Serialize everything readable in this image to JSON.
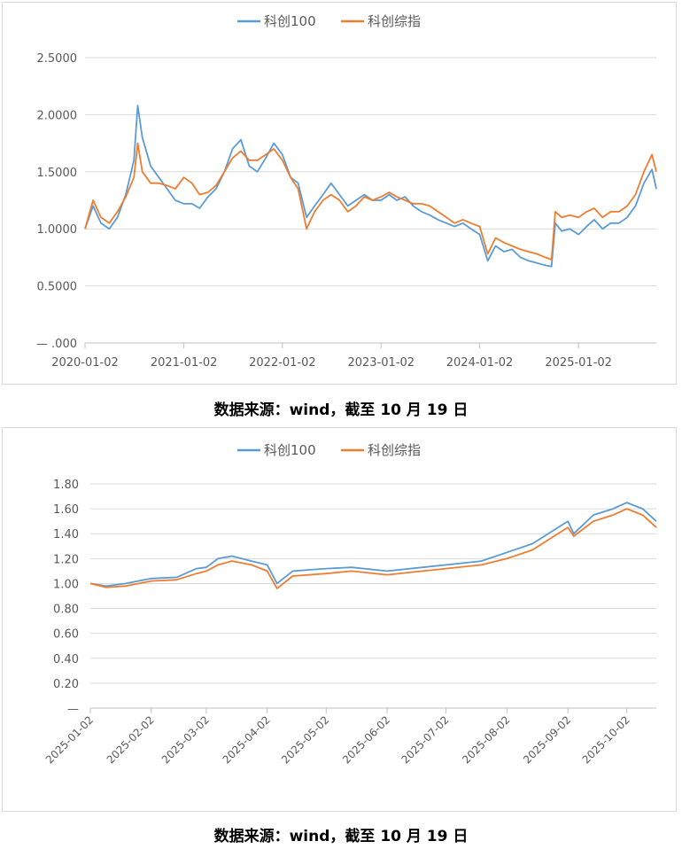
{
  "charts": [
    {
      "caption": "数据来源：wind，截至 10 月 19 日",
      "chart_data": {
        "type": "line",
        "y_ticks": [
          "—  .000",
          "0.5000",
          "1.0000",
          "1.5000",
          "2.0000",
          "2.5000"
        ],
        "ylim": [
          0,
          2.5
        ],
        "x_ticks": [
          "2020-01-02",
          "2021-01-02",
          "2022-01-02",
          "2023-01-02",
          "2024-01-02",
          "2025-01-02"
        ],
        "x_range": [
          "2020-01-02",
          "2025-10-17"
        ],
        "grid": "horizontal",
        "legend_position": "top",
        "series": [
          {
            "name": "科创100",
            "color": "#5b9bd5",
            "points": [
              [
                "2020-01-02",
                1.0
              ],
              [
                "2020-02-01",
                1.2
              ],
              [
                "2020-03-01",
                1.05
              ],
              [
                "2020-04-01",
                1.0
              ],
              [
                "2020-05-01",
                1.1
              ],
              [
                "2020-06-01",
                1.3
              ],
              [
                "2020-07-01",
                1.6
              ],
              [
                "2020-07-15",
                2.08
              ],
              [
                "2020-08-01",
                1.8
              ],
              [
                "2020-09-01",
                1.55
              ],
              [
                "2020-10-01",
                1.45
              ],
              [
                "2020-11-01",
                1.35
              ],
              [
                "2020-12-01",
                1.25
              ],
              [
                "2021-01-02",
                1.22
              ],
              [
                "2021-02-01",
                1.22
              ],
              [
                "2021-03-01",
                1.18
              ],
              [
                "2021-04-01",
                1.28
              ],
              [
                "2021-05-01",
                1.35
              ],
              [
                "2021-06-01",
                1.5
              ],
              [
                "2021-07-01",
                1.7
              ],
              [
                "2021-08-01",
                1.78
              ],
              [
                "2021-09-01",
                1.55
              ],
              [
                "2021-10-01",
                1.5
              ],
              [
                "2021-11-01",
                1.62
              ],
              [
                "2021-12-01",
                1.75
              ],
              [
                "2022-01-02",
                1.65
              ],
              [
                "2022-02-01",
                1.45
              ],
              [
                "2022-03-01",
                1.4
              ],
              [
                "2022-04-01",
                1.1
              ],
              [
                "2022-05-01",
                1.2
              ],
              [
                "2022-06-01",
                1.3
              ],
              [
                "2022-07-01",
                1.4
              ],
              [
                "2022-08-01",
                1.3
              ],
              [
                "2022-09-01",
                1.2
              ],
              [
                "2022-10-01",
                1.25
              ],
              [
                "2022-11-01",
                1.3
              ],
              [
                "2022-12-01",
                1.25
              ],
              [
                "2023-01-02",
                1.25
              ],
              [
                "2023-02-01",
                1.3
              ],
              [
                "2023-03-01",
                1.25
              ],
              [
                "2023-04-01",
                1.28
              ],
              [
                "2023-05-01",
                1.2
              ],
              [
                "2023-06-01",
                1.15
              ],
              [
                "2023-07-01",
                1.12
              ],
              [
                "2023-08-01",
                1.08
              ],
              [
                "2023-09-01",
                1.05
              ],
              [
                "2023-10-01",
                1.02
              ],
              [
                "2023-11-01",
                1.05
              ],
              [
                "2023-12-01",
                1.0
              ],
              [
                "2024-01-02",
                0.95
              ],
              [
                "2024-02-01",
                0.72
              ],
              [
                "2024-03-01",
                0.85
              ],
              [
                "2024-04-01",
                0.8
              ],
              [
                "2024-05-01",
                0.82
              ],
              [
                "2024-06-01",
                0.75
              ],
              [
                "2024-07-01",
                0.72
              ],
              [
                "2024-08-01",
                0.7
              ],
              [
                "2024-09-01",
                0.68
              ],
              [
                "2024-09-24",
                0.67
              ],
              [
                "2024-10-08",
                1.05
              ],
              [
                "2024-11-01",
                0.98
              ],
              [
                "2024-12-01",
                1.0
              ],
              [
                "2025-01-02",
                0.95
              ],
              [
                "2025-02-01",
                1.02
              ],
              [
                "2025-03-01",
                1.08
              ],
              [
                "2025-04-01",
                1.0
              ],
              [
                "2025-05-01",
                1.05
              ],
              [
                "2025-06-01",
                1.05
              ],
              [
                "2025-07-01",
                1.1
              ],
              [
                "2025-08-01",
                1.2
              ],
              [
                "2025-09-01",
                1.4
              ],
              [
                "2025-10-01",
                1.52
              ],
              [
                "2025-10-17",
                1.35
              ]
            ]
          },
          {
            "name": "科创综指",
            "color": "#ed7d31",
            "points": [
              [
                "2020-01-02",
                1.0
              ],
              [
                "2020-02-01",
                1.25
              ],
              [
                "2020-03-01",
                1.1
              ],
              [
                "2020-04-01",
                1.05
              ],
              [
                "2020-05-01",
                1.15
              ],
              [
                "2020-06-01",
                1.28
              ],
              [
                "2020-07-01",
                1.45
              ],
              [
                "2020-07-15",
                1.75
              ],
              [
                "2020-08-01",
                1.5
              ],
              [
                "2020-09-01",
                1.4
              ],
              [
                "2020-10-01",
                1.4
              ],
              [
                "2020-11-01",
                1.38
              ],
              [
                "2020-12-01",
                1.35
              ],
              [
                "2021-01-02",
                1.45
              ],
              [
                "2021-02-01",
                1.4
              ],
              [
                "2021-03-01",
                1.3
              ],
              [
                "2021-04-01",
                1.32
              ],
              [
                "2021-05-01",
                1.38
              ],
              [
                "2021-06-01",
                1.5
              ],
              [
                "2021-07-01",
                1.62
              ],
              [
                "2021-08-01",
                1.68
              ],
              [
                "2021-09-01",
                1.6
              ],
              [
                "2021-10-01",
                1.6
              ],
              [
                "2021-11-01",
                1.65
              ],
              [
                "2021-12-01",
                1.7
              ],
              [
                "2022-01-02",
                1.6
              ],
              [
                "2022-02-01",
                1.45
              ],
              [
                "2022-03-01",
                1.35
              ],
              [
                "2022-04-01",
                1.0
              ],
              [
                "2022-05-01",
                1.15
              ],
              [
                "2022-06-01",
                1.25
              ],
              [
                "2022-07-01",
                1.3
              ],
              [
                "2022-08-01",
                1.25
              ],
              [
                "2022-09-01",
                1.15
              ],
              [
                "2022-10-01",
                1.2
              ],
              [
                "2022-11-01",
                1.28
              ],
              [
                "2022-12-01",
                1.25
              ],
              [
                "2023-01-02",
                1.28
              ],
              [
                "2023-02-01",
                1.32
              ],
              [
                "2023-03-01",
                1.28
              ],
              [
                "2023-04-01",
                1.25
              ],
              [
                "2023-05-01",
                1.22
              ],
              [
                "2023-06-01",
                1.22
              ],
              [
                "2023-07-01",
                1.2
              ],
              [
                "2023-08-01",
                1.15
              ],
              [
                "2023-09-01",
                1.1
              ],
              [
                "2023-10-01",
                1.05
              ],
              [
                "2023-11-01",
                1.08
              ],
              [
                "2023-12-01",
                1.05
              ],
              [
                "2024-01-02",
                1.02
              ],
              [
                "2024-02-01",
                0.78
              ],
              [
                "2024-03-01",
                0.92
              ],
              [
                "2024-04-01",
                0.88
              ],
              [
                "2024-05-01",
                0.85
              ],
              [
                "2024-06-01",
                0.82
              ],
              [
                "2024-07-01",
                0.8
              ],
              [
                "2024-08-01",
                0.78
              ],
              [
                "2024-09-01",
                0.75
              ],
              [
                "2024-09-24",
                0.73
              ],
              [
                "2024-10-08",
                1.15
              ],
              [
                "2024-11-01",
                1.1
              ],
              [
                "2024-12-01",
                1.12
              ],
              [
                "2025-01-02",
                1.1
              ],
              [
                "2025-02-01",
                1.15
              ],
              [
                "2025-03-01",
                1.18
              ],
              [
                "2025-04-01",
                1.1
              ],
              [
                "2025-05-01",
                1.15
              ],
              [
                "2025-06-01",
                1.15
              ],
              [
                "2025-07-01",
                1.2
              ],
              [
                "2025-08-01",
                1.3
              ],
              [
                "2025-09-01",
                1.5
              ],
              [
                "2025-10-01",
                1.65
              ],
              [
                "2025-10-17",
                1.5
              ]
            ]
          }
        ]
      }
    },
    {
      "caption": "数据来源：wind，截至 10 月 19 日",
      "chart_data": {
        "type": "line",
        "y_ticks": [
          "—",
          "0.20",
          "0.40",
          "0.60",
          "0.80",
          "1.00",
          "1.20",
          "1.40",
          "1.60",
          "1.80"
        ],
        "ylim": [
          0,
          1.8
        ],
        "x_ticks": [
          "2025-01-02",
          "2025-02-02",
          "2025-03-02",
          "2025-04-02",
          "2025-05-02",
          "2025-06-02",
          "2025-07-02",
          "2025-08-02",
          "2025-09-02",
          "2025-10-02"
        ],
        "x_range": [
          "2025-01-02",
          "2025-10-17"
        ],
        "grid": "horizontal",
        "legend_position": "top",
        "series": [
          {
            "name": "科创100",
            "color": "#5b9bd5",
            "points": [
              [
                "2025-01-02",
                1.0
              ],
              [
                "2025-01-10",
                0.98
              ],
              [
                "2025-01-20",
                1.0
              ],
              [
                "2025-02-02",
                1.04
              ],
              [
                "2025-02-15",
                1.05
              ],
              [
                "2025-02-25",
                1.12
              ],
              [
                "2025-03-02",
                1.13
              ],
              [
                "2025-03-08",
                1.2
              ],
              [
                "2025-03-15",
                1.22
              ],
              [
                "2025-03-25",
                1.18
              ],
              [
                "2025-04-02",
                1.15
              ],
              [
                "2025-04-07",
                1.0
              ],
              [
                "2025-04-15",
                1.1
              ],
              [
                "2025-05-02",
                1.12
              ],
              [
                "2025-05-15",
                1.13
              ],
              [
                "2025-06-02",
                1.1
              ],
              [
                "2025-06-20",
                1.13
              ],
              [
                "2025-07-02",
                1.15
              ],
              [
                "2025-07-20",
                1.18
              ],
              [
                "2025-08-02",
                1.25
              ],
              [
                "2025-08-15",
                1.32
              ],
              [
                "2025-08-25",
                1.42
              ],
              [
                "2025-09-02",
                1.5
              ],
              [
                "2025-09-05",
                1.4
              ],
              [
                "2025-09-15",
                1.55
              ],
              [
                "2025-09-25",
                1.6
              ],
              [
                "2025-10-02",
                1.65
              ],
              [
                "2025-10-10",
                1.6
              ],
              [
                "2025-10-17",
                1.5
              ]
            ]
          },
          {
            "name": "科创综指",
            "color": "#ed7d31",
            "points": [
              [
                "2025-01-02",
                1.0
              ],
              [
                "2025-01-10",
                0.97
              ],
              [
                "2025-01-20",
                0.98
              ],
              [
                "2025-02-02",
                1.02
              ],
              [
                "2025-02-15",
                1.03
              ],
              [
                "2025-02-25",
                1.08
              ],
              [
                "2025-03-02",
                1.1
              ],
              [
                "2025-03-08",
                1.15
              ],
              [
                "2025-03-15",
                1.18
              ],
              [
                "2025-03-25",
                1.15
              ],
              [
                "2025-04-02",
                1.1
              ],
              [
                "2025-04-07",
                0.96
              ],
              [
                "2025-04-15",
                1.06
              ],
              [
                "2025-05-02",
                1.08
              ],
              [
                "2025-05-15",
                1.1
              ],
              [
                "2025-06-02",
                1.07
              ],
              [
                "2025-06-20",
                1.1
              ],
              [
                "2025-07-02",
                1.12
              ],
              [
                "2025-07-20",
                1.15
              ],
              [
                "2025-08-02",
                1.2
              ],
              [
                "2025-08-15",
                1.27
              ],
              [
                "2025-08-25",
                1.37
              ],
              [
                "2025-09-02",
                1.45
              ],
              [
                "2025-09-05",
                1.38
              ],
              [
                "2025-09-15",
                1.5
              ],
              [
                "2025-09-25",
                1.55
              ],
              [
                "2025-10-02",
                1.6
              ],
              [
                "2025-10-10",
                1.55
              ],
              [
                "2025-10-17",
                1.45
              ]
            ]
          }
        ]
      }
    }
  ]
}
